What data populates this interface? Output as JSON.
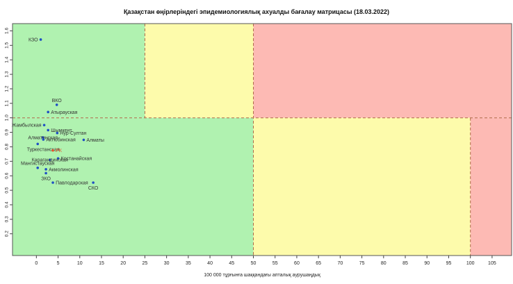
{
  "chart_data": {
    "type": "scatter",
    "title": "Қазақстан өңірлеріндегі эпидемиологиялық ахуалды бағалау матрицасы  (18.03.2022)",
    "xlabel": "100 000 тұрғынға шаққандағы апталық аурушаңдық",
    "ylabel": "",
    "xlim": [
      -5.5,
      109.5
    ],
    "ylim": [
      0.05,
      1.65
    ],
    "x_ticks": [
      "0",
      "5",
      "10",
      "15",
      "20",
      "25",
      "30",
      "35",
      "40",
      "45",
      "50",
      "55",
      "60",
      "65",
      "70",
      "75",
      "80",
      "85",
      "90",
      "95",
      "100",
      "105"
    ],
    "y_ticks": [
      "0.2",
      "0.3",
      "0.4",
      "0.5",
      "0.6",
      "0.7",
      "0.8",
      "0.9",
      "1.0",
      "1.1",
      "1.2",
      "1.3",
      "1.4",
      "1.5",
      "1.6"
    ],
    "thresholds": {
      "x": [
        25,
        50,
        100
      ],
      "y": 1.0
    },
    "zones": [
      {
        "x": [
          -5.5,
          25
        ],
        "y": [
          1.0,
          1.65
        ],
        "color": "#b0f2b0"
      },
      {
        "x": [
          25,
          50
        ],
        "y": [
          1.0,
          1.65
        ],
        "color": "#fdfbab"
      },
      {
        "x": [
          50,
          109.5
        ],
        "y": [
          1.0,
          1.65
        ],
        "color": "#fdbab4"
      },
      {
        "x": [
          -5.5,
          50
        ],
        "y": [
          0.05,
          1.0
        ],
        "color": "#b0f2b0"
      },
      {
        "x": [
          50,
          100
        ],
        "y": [
          0.05,
          1.0
        ],
        "color": "#fdfbab"
      },
      {
        "x": [
          100,
          109.5
        ],
        "y": [
          0.05,
          1.0
        ],
        "color": "#fdbab4"
      }
    ],
    "point_color": "#1f4fc4",
    "highlight_color": "#e8502a",
    "grid": false,
    "points": [
      {
        "label": "КЗО",
        "x": 1.0,
        "y": 1.54,
        "label_pos": "left"
      },
      {
        "label": "ВКО",
        "x": 4.7,
        "y": 1.09,
        "label_pos": "above"
      },
      {
        "label": "Атырауская",
        "x": 2.7,
        "y": 1.04,
        "label_pos": "right"
      },
      {
        "label": "Жамбылская",
        "x": 1.8,
        "y": 0.95,
        "label_pos": "left"
      },
      {
        "label": "Шымкент",
        "x": 2.7,
        "y": 0.915,
        "label_pos": "right"
      },
      {
        "label": "Нур-Султан",
        "x": 4.8,
        "y": 0.895,
        "label_pos": "right"
      },
      {
        "label": "Алматинская",
        "x": 1.5,
        "y": 0.865,
        "label_pos": "center"
      },
      {
        "label": "Актюбинская",
        "x": 1.6,
        "y": 0.85,
        "label_pos": "right"
      },
      {
        "label": "Алматы",
        "x": 10.9,
        "y": 0.848,
        "label_pos": "right"
      },
      {
        "label": "Туркестанская",
        "x": 0.3,
        "y": 0.82,
        "label_pos": "below-left"
      },
      {
        "label": "РК",
        "x": 3.8,
        "y": 0.775,
        "label_pos": "right",
        "highlight": true
      },
      {
        "label": "Костанайская",
        "x": 5.0,
        "y": 0.72,
        "label_pos": "right"
      },
      {
        "label": "Карагандинская",
        "x": 3.1,
        "y": 0.71,
        "label_pos": "center"
      },
      {
        "label": "Мангистауская",
        "x": 0.3,
        "y": 0.655,
        "label_pos": "above"
      },
      {
        "label": "Акмолинская",
        "x": 2.2,
        "y": 0.645,
        "label_pos": "right"
      },
      {
        "label": "ЗКО",
        "x": 2.2,
        "y": 0.618,
        "label_pos": "below"
      },
      {
        "label": "Павлодарская",
        "x": 3.8,
        "y": 0.553,
        "label_pos": "right"
      },
      {
        "label": "СКО",
        "x": 13.1,
        "y": 0.553,
        "label_pos": "below"
      }
    ]
  }
}
